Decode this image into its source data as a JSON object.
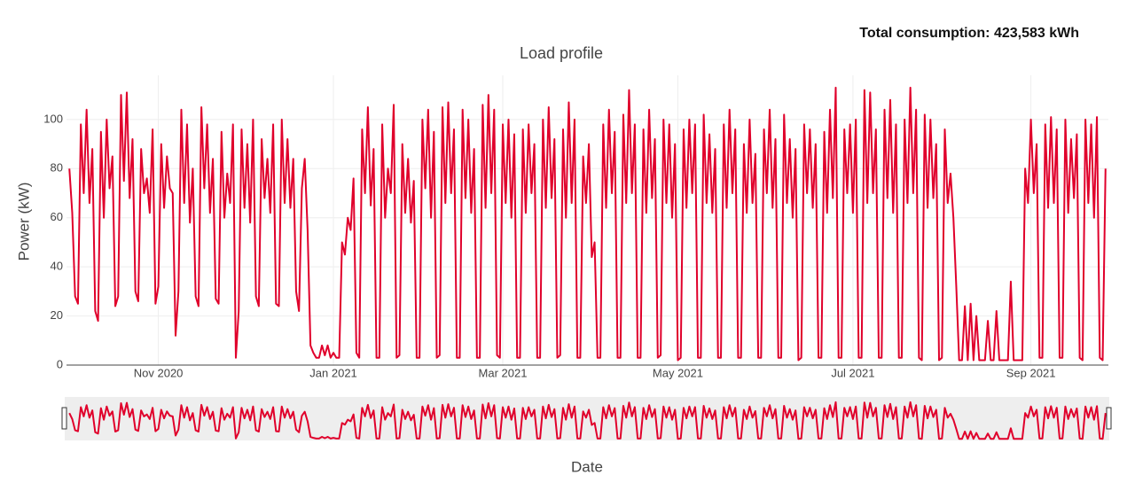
{
  "chart_data": {
    "type": "line",
    "title": "Load profile",
    "annotation": "Total consumption: 423,583 kWh",
    "x_label": "Date",
    "y_label": "Power (kW)",
    "xlim": [
      -1,
      362
    ],
    "xticks": [
      {
        "value": 31,
        "label": "Nov 2020"
      },
      {
        "value": 92,
        "label": "Jan 2021"
      },
      {
        "value": 151,
        "label": "Mar 2021"
      },
      {
        "value": 212,
        "label": "May 2021"
      },
      {
        "value": 273,
        "label": "Jul 2021"
      },
      {
        "value": 335,
        "label": "Sep 2021"
      }
    ],
    "ylim": [
      0,
      118
    ],
    "yticks": [
      0,
      20,
      40,
      60,
      80,
      100
    ],
    "grid": true,
    "range_slider": true,
    "x": [
      0,
      1,
      2,
      3,
      4,
      5,
      6,
      7,
      8,
      9,
      10,
      11,
      12,
      13,
      14,
      15,
      16,
      17,
      18,
      19,
      20,
      21,
      22,
      23,
      24,
      25,
      26,
      27,
      28,
      29,
      30,
      31,
      32,
      33,
      34,
      35,
      36,
      37,
      38,
      39,
      40,
      41,
      42,
      43,
      44,
      45,
      46,
      47,
      48,
      49,
      50,
      51,
      52,
      53,
      54,
      55,
      56,
      57,
      58,
      59,
      60,
      61,
      62,
      63,
      64,
      65,
      66,
      67,
      68,
      69,
      70,
      71,
      72,
      73,
      74,
      75,
      76,
      77,
      78,
      79,
      80,
      81,
      82,
      83,
      84,
      85,
      86,
      87,
      88,
      89,
      90,
      91,
      92,
      93,
      94,
      95,
      96,
      97,
      98,
      99,
      100,
      101,
      102,
      103,
      104,
      105,
      106,
      107,
      108,
      109,
      110,
      111,
      112,
      113,
      114,
      115,
      116,
      117,
      118,
      119,
      120,
      121,
      122,
      123,
      124,
      125,
      126,
      127,
      128,
      129,
      130,
      131,
      132,
      133,
      134,
      135,
      136,
      137,
      138,
      139,
      140,
      141,
      142,
      143,
      144,
      145,
      146,
      147,
      148,
      149,
      150,
      151,
      152,
      153,
      154,
      155,
      156,
      157,
      158,
      159,
      160,
      161,
      162,
      163,
      164,
      165,
      166,
      167,
      168,
      169,
      170,
      171,
      172,
      173,
      174,
      175,
      176,
      177,
      178,
      179,
      180,
      181,
      182,
      183,
      184,
      185,
      186,
      187,
      188,
      189,
      190,
      191,
      192,
      193,
      194,
      195,
      196,
      197,
      198,
      199,
      200,
      201,
      202,
      203,
      204,
      205,
      206,
      207,
      208,
      209,
      210,
      211,
      212,
      213,
      214,
      215,
      216,
      217,
      218,
      219,
      220,
      221,
      222,
      223,
      224,
      225,
      226,
      227,
      228,
      229,
      230,
      231,
      232,
      233,
      234,
      235,
      236,
      237,
      238,
      239,
      240,
      241,
      242,
      243,
      244,
      245,
      246,
      247,
      248,
      249,
      250,
      251,
      252,
      253,
      254,
      255,
      256,
      257,
      258,
      259,
      260,
      261,
      262,
      263,
      264,
      265,
      266,
      267,
      268,
      269,
      270,
      271,
      272,
      273,
      274,
      275,
      276,
      277,
      278,
      279,
      280,
      281,
      282,
      283,
      284,
      285,
      286,
      287,
      288,
      289,
      290,
      291,
      292,
      293,
      294,
      295,
      296,
      297,
      298,
      299,
      300,
      301,
      302,
      303,
      304,
      305,
      306,
      307,
      308,
      309,
      310,
      311,
      312,
      313,
      314,
      315,
      316,
      317,
      318,
      319,
      320,
      321,
      322,
      323,
      324,
      325,
      326,
      327,
      328,
      329,
      330,
      331,
      332,
      333,
      334,
      335,
      336,
      337,
      338,
      339,
      340,
      341,
      342,
      343,
      344,
      345,
      346,
      347,
      348,
      349,
      350,
      351,
      352,
      353,
      354,
      355,
      356,
      357,
      358,
      359,
      360,
      361
    ],
    "series": [
      {
        "name": "Power",
        "color": "#e0002b",
        "values": [
          80,
          62,
          28,
          25,
          98,
          70,
          104,
          66,
          88,
          22,
          18,
          95,
          60,
          100,
          72,
          85,
          24,
          28,
          110,
          75,
          111,
          68,
          92,
          30,
          26,
          88,
          70,
          76,
          62,
          96,
          25,
          32,
          90,
          64,
          85,
          72,
          70,
          12,
          30,
          104,
          66,
          98,
          58,
          80,
          28,
          24,
          105,
          72,
          98,
          62,
          84,
          27,
          25,
          95,
          60,
          78,
          66,
          98,
          3,
          22,
          96,
          64,
          90,
          58,
          100,
          28,
          24,
          92,
          68,
          84,
          62,
          98,
          25,
          24,
          100,
          66,
          92,
          64,
          84,
          30,
          22,
          72,
          84,
          55,
          8,
          5,
          3,
          3,
          8,
          4,
          8,
          3,
          5,
          3,
          3,
          50,
          45,
          60,
          55,
          76,
          5,
          3,
          96,
          70,
          105,
          65,
          88,
          3,
          3,
          98,
          60,
          80,
          70,
          106,
          3,
          4,
          90,
          62,
          84,
          58,
          75,
          3,
          3,
          100,
          72,
          104,
          60,
          95,
          3,
          4,
          105,
          66,
          107,
          70,
          96,
          3,
          3,
          104,
          68,
          100,
          62,
          88,
          3,
          3,
          106,
          64,
          110,
          70,
          104,
          4,
          3,
          98,
          66,
          100,
          60,
          94,
          3,
          3,
          96,
          62,
          98,
          70,
          90,
          3,
          3,
          100,
          64,
          105,
          68,
          92,
          3,
          4,
          96,
          60,
          107,
          66,
          100,
          3,
          3,
          85,
          66,
          90,
          44,
          50,
          3,
          3,
          98,
          64,
          104,
          70,
          95,
          3,
          3,
          102,
          66,
          112,
          70,
          98,
          3,
          3,
          96,
          62,
          104,
          68,
          92,
          3,
          4,
          100,
          66,
          98,
          60,
          90,
          2,
          3,
          96,
          64,
          100,
          70,
          98,
          3,
          3,
          102,
          66,
          94,
          62,
          88,
          3,
          3,
          98,
          64,
          104,
          70,
          96,
          3,
          3,
          90,
          62,
          100,
          66,
          86,
          3,
          3,
          96,
          70,
          104,
          64,
          92,
          3,
          3,
          102,
          66,
          92,
          60,
          88,
          2,
          3,
          98,
          70,
          96,
          64,
          90,
          3,
          3,
          95,
          62,
          104,
          68,
          113,
          3,
          3,
          96,
          70,
          98,
          62,
          100,
          3,
          3,
          112,
          66,
          111,
          70,
          96,
          3,
          3,
          104,
          68,
          108,
          62,
          98,
          3,
          3,
          100,
          66,
          113,
          70,
          104,
          3,
          2,
          102,
          64,
          100,
          68,
          90,
          2,
          3,
          96,
          66,
          78,
          60,
          32,
          2,
          2,
          24,
          2,
          25,
          2,
          20,
          2,
          2,
          2,
          18,
          2,
          2,
          22,
          2,
          2,
          2,
          2,
          34,
          2,
          2,
          2,
          2,
          80,
          66,
          100,
          70,
          90,
          3,
          3,
          98,
          64,
          101,
          66,
          96,
          3,
          3,
          100,
          62,
          92,
          68,
          94,
          3,
          2,
          100,
          66,
          98,
          60,
          101,
          3,
          2,
          80
        ]
      }
    ]
  }
}
